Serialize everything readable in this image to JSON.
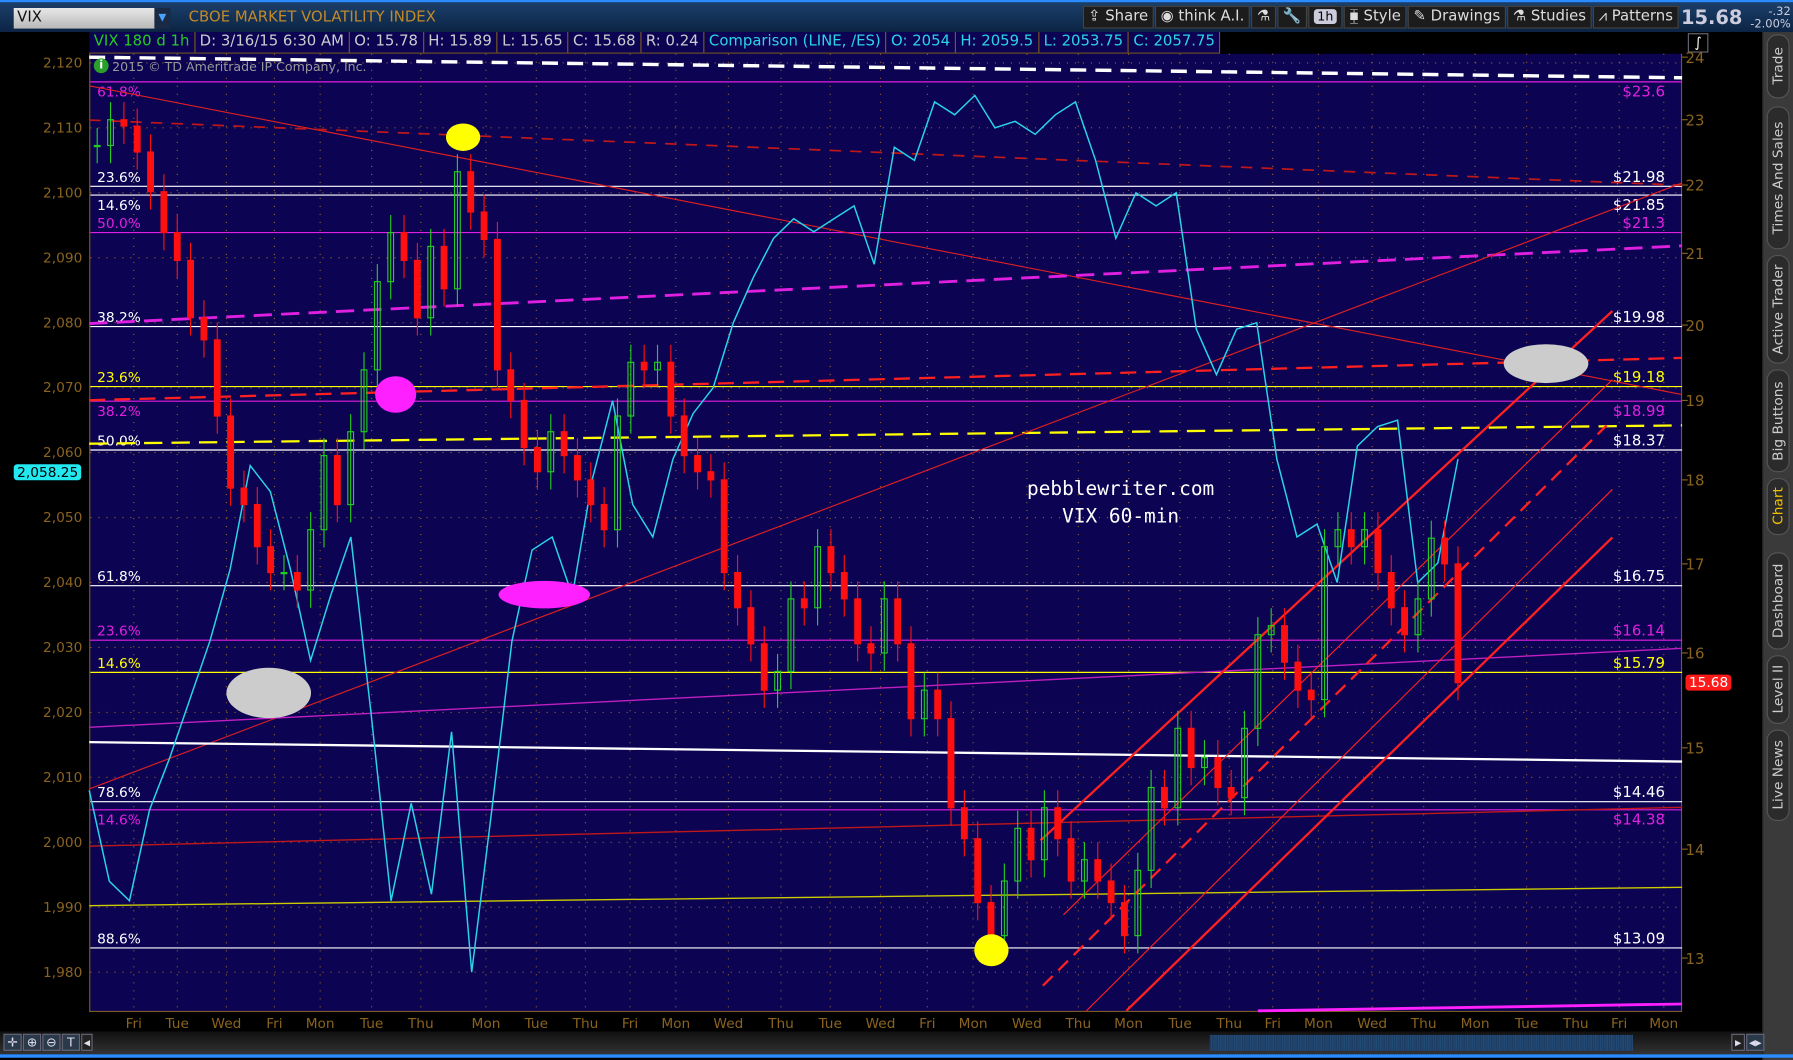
{
  "header": {
    "symbol": "VIX",
    "description": "CBOE MARKET VOLATILITY INDEX",
    "toolbar": [
      "Share",
      "think A.I.",
      "1h",
      "Style",
      "Drawings",
      "Studies",
      "Patterns"
    ],
    "last_price": "15.68",
    "change": "-.32",
    "change_pct": "-2.00%"
  },
  "info_bar": {
    "study": "VIX 180 d 1h",
    "date": "D: 3/16/15 6:30 AM",
    "open": "O: 15.78",
    "high": "H: 15.89",
    "low": "L: 15.65",
    "close": "C: 15.68",
    "range": "R: 0.24",
    "comparison": "Comparison (LINE, /ES)",
    "cmp_open": "O: 2054",
    "cmp_high": "H: 2059.5",
    "cmp_low": "L: 2053.75",
    "cmp_close": "C: 2057.75"
  },
  "copyright": "2015 © TD Ameritrade IP Company, Inc.",
  "watermark": {
    "line1": "pebblewriter.com",
    "line2": "VIX 60-min"
  },
  "price_tags": {
    "es": "2,058.25",
    "vix": "15.68"
  },
  "sidebar_tabs": [
    "Trade",
    "Times And Sales",
    "Active Trader",
    "Big Buttons",
    "Chart",
    "Dashboard",
    "Level II",
    "Live News"
  ],
  "colors": {
    "background": "#0c0353",
    "up": "#22cc22",
    "down": "#ff1010",
    "comparison": "#2ad4e8",
    "axis": "#8a6320",
    "active_tab": "#f0c000"
  },
  "chart_data": {
    "type": "candlestick with comparison line",
    "right_axis": {
      "series": "VIX",
      "ticks": [
        24,
        23,
        22,
        21,
        20,
        19,
        18,
        17,
        16,
        15,
        14,
        13
      ],
      "scale": "log",
      "range": [
        12.6,
        24.1
      ]
    },
    "left_axis": {
      "series": "/ES",
      "ticks": [
        "2,120",
        "2,110",
        "2,100",
        "2,090",
        "2,080",
        "2,070",
        "2,060",
        "2,050",
        "2,040",
        "2,030",
        "2,020",
        "2,010",
        "2,000",
        "1,990",
        "1,980"
      ],
      "range": [
        1977,
        2121
      ]
    },
    "x_ticks": [
      "Fri",
      "Tue",
      "Wed",
      "Fri",
      "Mon",
      "Tue",
      "Thu",
      "Mon",
      "Tue",
      "Thu",
      "Fri",
      "Mon",
      "Wed",
      "Thu",
      "Tue",
      "Wed",
      "Fri",
      "Mon",
      "Wed",
      "Thu",
      "Mon",
      "Tue",
      "Thu",
      "Fri",
      "Mon",
      "Wed",
      "Thu",
      "Mon",
      "Tue",
      "Thu",
      "Fri",
      "Mon"
    ],
    "grid": true,
    "vix_closes": [
      22.6,
      23.0,
      22.9,
      22.5,
      21.9,
      21.3,
      20.9,
      20.1,
      19.8,
      18.8,
      17.9,
      17.7,
      17.2,
      16.9,
      16.9,
      16.7,
      17.4,
      18.3,
      17.7,
      18.6,
      19.4,
      20.6,
      21.3,
      20.9,
      20.1,
      21.1,
      20.5,
      22.2,
      21.6,
      21.2,
      19.4,
      19.0,
      18.4,
      18.1,
      18.6,
      18.3,
      18.0,
      17.7,
      17.4,
      18.8,
      19.5,
      19.4,
      19.5,
      18.8,
      18.3,
      18.1,
      18.0,
      16.9,
      16.5,
      16.1,
      15.6,
      15.8,
      16.6,
      16.5,
      17.2,
      16.9,
      16.6,
      16.1,
      16.0,
      16.6,
      16.1,
      15.3,
      15.6,
      15.3,
      14.4,
      14.1,
      13.5,
      13.2,
      13.7,
      14.2,
      13.9,
      14.4,
      14.1,
      13.7,
      13.9,
      13.7,
      13.5,
      13.2,
      13.8,
      14.6,
      14.4,
      15.2,
      14.8,
      14.9,
      14.6,
      14.5,
      15.2,
      16.2,
      16.3,
      15.9,
      15.6,
      15.5,
      17.2,
      17.4,
      17.2,
      17.4,
      16.9,
      16.5,
      16.2,
      16.6,
      17.3,
      17.0,
      15.68
    ],
    "es_line": [
      2008,
      1994,
      1991,
      2005,
      2013,
      2022,
      2031,
      2042,
      2058,
      2054,
      2042,
      2028,
      2038,
      2047,
      2020,
      1991,
      2006,
      1992,
      2017,
      1980,
      2005,
      2031,
      2045,
      2047,
      2038,
      2056,
      2068,
      2052,
      2047,
      2059,
      2066,
      2070,
      2080,
      2087,
      2093,
      2096,
      2094,
      2096,
      2098,
      2089,
      2107,
      2105,
      2114,
      2112,
      2115,
      2110,
      2111,
      2109,
      2112,
      2114,
      2105,
      2093,
      2100,
      2098,
      2100,
      2079,
      2072,
      2079,
      2080,
      2059,
      2047,
      2049,
      2040,
      2061,
      2064,
      2065,
      2040,
      2043,
      2059
    ],
    "levels": [
      {
        "value": 23.6,
        "label": "$23.6",
        "pct": "61.8%",
        "color": "#e020e0"
      },
      {
        "value": 21.98,
        "label": "$21.98",
        "pct": "23.6%",
        "color": "#ffffff"
      },
      {
        "value": 21.85,
        "label": "$21.85",
        "pct": "14.6%",
        "color": "#ffffff"
      },
      {
        "value": 21.3,
        "label": "$21.3",
        "pct": "50.0%",
        "color": "#e020e0"
      },
      {
        "value": 19.98,
        "label": "$19.98",
        "pct": "38.2%",
        "color": "#ffffff"
      },
      {
        "value": 19.18,
        "label": "$19.18",
        "pct": "23.6%",
        "color": "#ffff00"
      },
      {
        "value": 18.99,
        "label": "$18.99",
        "pct": "38.2%",
        "color": "#e020e0"
      },
      {
        "value": 18.37,
        "label": "$18.37",
        "pct": "50.0%",
        "color": "#ffffff"
      },
      {
        "value": 16.75,
        "label": "$16.75",
        "pct": "61.8%",
        "color": "#ffffff"
      },
      {
        "value": 16.14,
        "label": "$16.14",
        "pct": "23.6%",
        "color": "#e020e0"
      },
      {
        "value": 15.79,
        "label": "$15.79",
        "pct": "14.6%",
        "color": "#ffff00"
      },
      {
        "value": 14.46,
        "label": "$14.46",
        "pct": "78.6%",
        "color": "#ffffff"
      },
      {
        "value": 14.38,
        "label": "$14.38",
        "pct": "14.6%",
        "color": "#e020e0"
      },
      {
        "value": 13.09,
        "label": "$13.09",
        "pct": "88.6%",
        "color": "#ffffff"
      }
    ]
  }
}
